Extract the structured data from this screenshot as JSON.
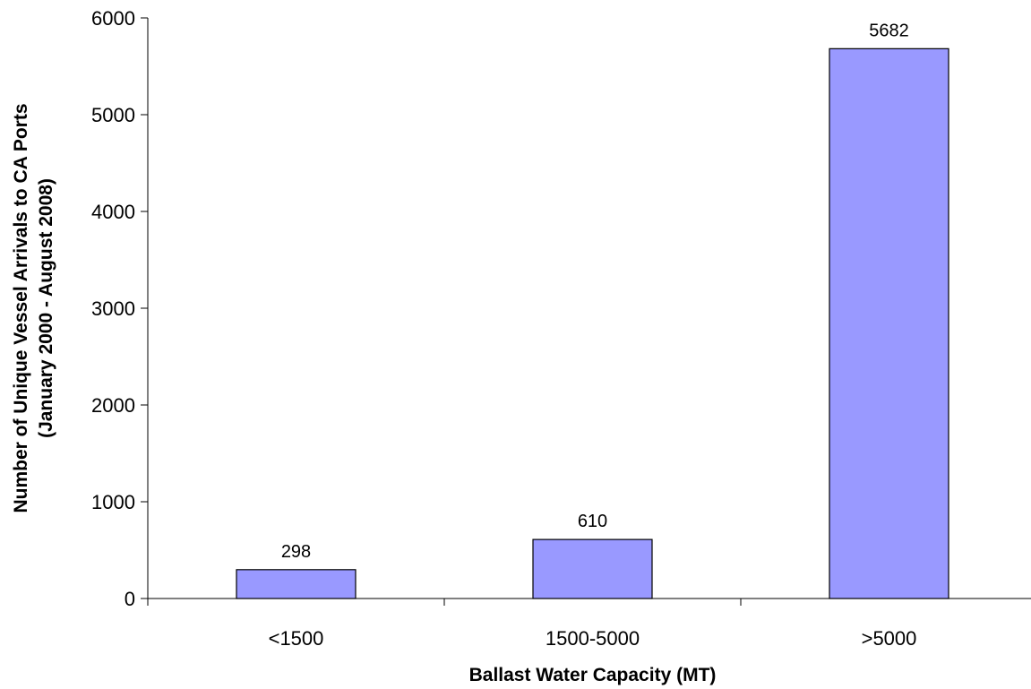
{
  "chart_data": {
    "type": "bar",
    "categories": [
      "<1500",
      "1500-5000",
      ">5000"
    ],
    "values": [
      298,
      610,
      5682
    ],
    "data_labels": [
      "298",
      "610",
      "5682"
    ],
    "title": "",
    "xlabel": "Ballast Water Capacity (MT)",
    "ylabel": "Number of Unique Vessel Arrivals to CA Ports",
    "ylabel_line2": "(January 2000 - August 2008)",
    "ylim": [
      0,
      6000
    ],
    "yticks": [
      0,
      1000,
      2000,
      3000,
      4000,
      5000,
      6000
    ],
    "ytick_labels": [
      "0",
      "1000",
      "2000",
      "3000",
      "4000",
      "5000",
      "6000"
    ],
    "grid": false,
    "legend": "none",
    "bar_color": "#9999ff"
  }
}
